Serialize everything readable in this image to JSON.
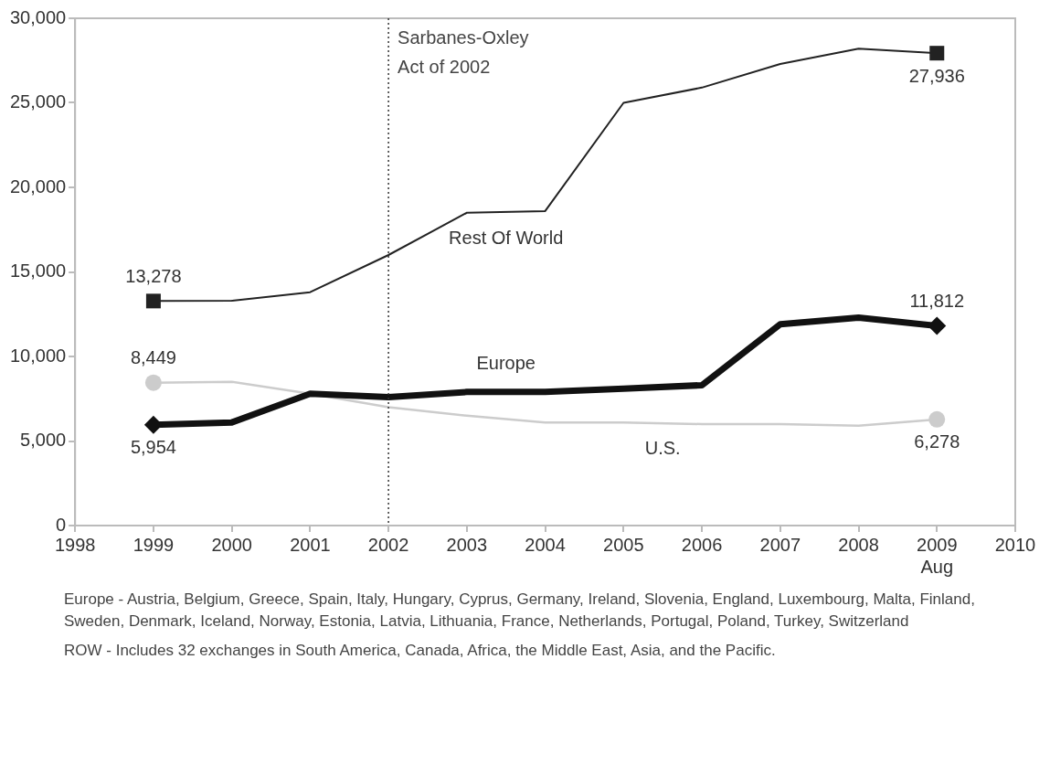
{
  "chart_data": {
    "type": "line",
    "x": [
      1999,
      2000,
      2001,
      2002,
      2003,
      2004,
      2005,
      2006,
      2007,
      2008,
      2009
    ],
    "xlim": [
      1998,
      2010
    ],
    "xticks": [
      1998,
      1999,
      2000,
      2001,
      2002,
      2003,
      2004,
      2005,
      2006,
      2007,
      2008,
      {
        "value": 2009,
        "label": "2009\nAug"
      },
      2010
    ],
    "ylim": [
      0,
      30000
    ],
    "yticks": [
      0,
      {
        "value": 5000,
        "label": "5,000"
      },
      {
        "value": 10000,
        "label": "10,000"
      },
      {
        "value": 15000,
        "label": "15,000"
      },
      {
        "value": 20000,
        "label": "20,000"
      },
      {
        "value": 25000,
        "label": "25,000"
      },
      {
        "value": 30000,
        "label": "30,000"
      }
    ],
    "grid": false,
    "legend": false,
    "series": [
      {
        "name": "Rest Of World",
        "color": "#222222",
        "values": [
          13278,
          13300,
          13800,
          16000,
          18500,
          18600,
          25000,
          25900,
          27300,
          28200,
          27936
        ],
        "value_labels": [
          "13,278",
          null,
          null,
          null,
          null,
          null,
          null,
          null,
          null,
          null,
          "27,936"
        ]
      },
      {
        "name": "Europe",
        "color": "#111111",
        "values": [
          5954,
          6100,
          7800,
          7600,
          7900,
          7900,
          8100,
          8300,
          11900,
          12300,
          11812
        ],
        "value_labels": [
          "5,954",
          null,
          null,
          null,
          null,
          null,
          null,
          null,
          null,
          null,
          "11,812"
        ]
      },
      {
        "name": "U.S.",
        "color": "#cccccc",
        "values": [
          8449,
          8500,
          7800,
          7000,
          6500,
          6100,
          6100,
          6000,
          6000,
          5900,
          6278
        ],
        "value_labels": [
          "8,449",
          null,
          null,
          null,
          null,
          null,
          null,
          null,
          null,
          null,
          "6,278"
        ]
      }
    ],
    "ref_lines": [
      {
        "axis": "x",
        "value": 2002,
        "label": "Sarbanes-Oxley Act of 2002",
        "line_style": "dotted",
        "color": "#333333"
      }
    ],
    "annotations": [
      "Europe - Austria, Belgium, Greece, Spain, Italy, Hungary, Cyprus, Germany, Ireland, Slovenia, England, Luxembourg, Malta, Finland, Sweden, Denmark, Iceland, Norway, Estonia, Latvia, Lithuania, France, Netherlands, Portugal, Poland, Turkey, Switzerland",
      "ROW - Includes 32 exchanges in South America, Canada, Africa, the Middle East, Asia, and the Pacific."
    ]
  }
}
